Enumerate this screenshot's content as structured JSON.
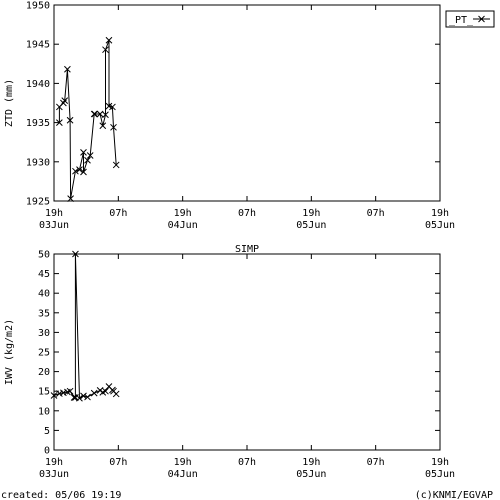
{
  "footer": {
    "created": "created: 05/06 19:19",
    "credit": "(c)KNMI/EGVAP"
  },
  "chart_data": [
    {
      "type": "line",
      "ylabel": "ZTD (mm)",
      "ylim": [
        1925,
        1950
      ],
      "yticks": [
        1925,
        1930,
        1935,
        1940,
        1945,
        1950
      ],
      "xlim": [
        0,
        72
      ],
      "xtick_positions": [
        0,
        12,
        24,
        36,
        48,
        60,
        72
      ],
      "xtick_labels": [
        [
          "19h",
          "03Jun"
        ],
        [
          "07h",
          ""
        ],
        [
          "19h",
          "04Jun"
        ],
        [
          "07h",
          ""
        ],
        [
          "19h",
          "05Jun"
        ],
        [
          "07h",
          ""
        ],
        [
          "19h",
          "05Jun"
        ]
      ],
      "grid": false,
      "legend": {
        "placement": "top-right",
        "label": "_PT_"
      },
      "series": [
        {
          "name": "_PT_",
          "x": [
            1.0,
            1.0,
            1.75,
            2.0,
            2.5,
            3.0,
            3.1,
            4.0,
            4.75,
            5.5,
            5.5,
            6.25,
            6.75,
            7.5,
            7.6,
            8.6,
            9.1,
            9.6,
            9.6,
            10.25,
            10.25,
            10.9,
            11.1,
            11.6
          ],
          "y": [
            1935.0,
            1937.0,
            1937.5,
            1937.8,
            1941.8,
            1935.3,
            1925.3,
            1928.8,
            1929.0,
            1931.2,
            1928.7,
            1930.2,
            1930.8,
            1936.1,
            1936.1,
            1936.1,
            1934.6,
            1936.0,
            1944.3,
            1945.5,
            1937.1,
            1937.0,
            1934.4,
            1929.6
          ]
        }
      ]
    },
    {
      "type": "line",
      "title": "SIMP",
      "ylabel": "IWV (kg/m2)",
      "ylim": [
        0,
        50
      ],
      "yticks": [
        0,
        5,
        10,
        15,
        20,
        25,
        30,
        35,
        40,
        45,
        50
      ],
      "xlim": [
        0,
        72
      ],
      "xtick_positions": [
        0,
        12,
        24,
        36,
        48,
        60,
        72
      ],
      "xtick_labels": [
        [
          "19h",
          "03Jun"
        ],
        [
          "07h",
          ""
        ],
        [
          "19h",
          "04Jun"
        ],
        [
          "07h",
          ""
        ],
        [
          "19h",
          "05Jun"
        ],
        [
          "07h",
          ""
        ],
        [
          "19h",
          "05Jun"
        ]
      ],
      "grid": false,
      "series": [
        {
          "x": [
            0.0,
            1.0,
            1.75,
            2.5,
            3.0,
            3.75,
            4.0,
            4.0,
            4.75,
            5.5,
            6.25,
            7.5,
            8.6,
            9.1,
            9.6,
            10.25,
            10.9,
            11.1,
            11.6
          ],
          "y": [
            13.9,
            14.4,
            14.6,
            14.8,
            15.0,
            13.4,
            13.4,
            50.0,
            13.2,
            13.8,
            13.5,
            14.5,
            15.2,
            14.7,
            15.0,
            16.2,
            15.3,
            15.0,
            14.3
          ]
        }
      ]
    }
  ]
}
